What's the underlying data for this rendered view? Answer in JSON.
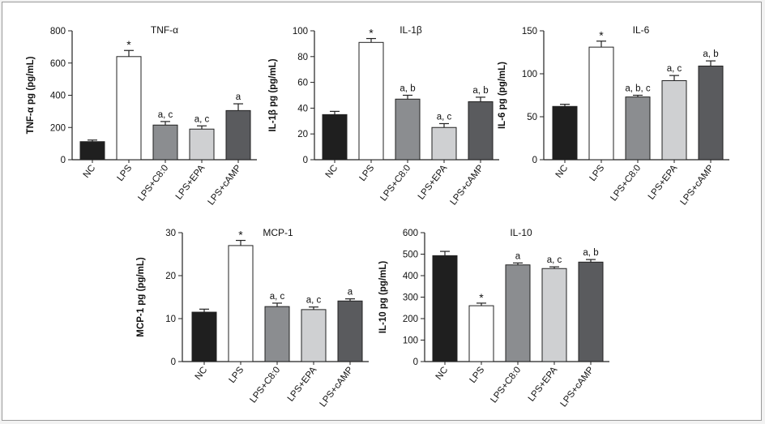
{
  "categories": [
    "NC",
    "LPS",
    "LPS+C8:0",
    "LPS+EPA",
    "LPS+cAMP"
  ],
  "colors": [
    "#1f1f1f",
    "#ffffff",
    "#8b8d90",
    "#cfd0d2",
    "#5a5b5e"
  ],
  "chart_data": [
    {
      "type": "bar",
      "title": "TNF-α",
      "ylabel": "TNF-α pg (pg/mL)",
      "ylim": [
        0,
        800
      ],
      "yticks": [
        0,
        200,
        400,
        600,
        800
      ],
      "categories": [
        "NC",
        "LPS",
        "LPS+C8:0",
        "LPS+EPA",
        "LPS+cAMP"
      ],
      "values": [
        112,
        640,
        215,
        190,
        305
      ],
      "errors": [
        10,
        38,
        22,
        20,
        42
      ],
      "annotations": [
        "",
        "*",
        "a, c",
        "a, c",
        "a"
      ]
    },
    {
      "type": "bar",
      "title": "IL-1β",
      "ylabel": "IL-1β pg (pg/mL)",
      "ylim": [
        0,
        100
      ],
      "yticks": [
        0,
        20,
        40,
        60,
        80,
        100
      ],
      "categories": [
        "NC",
        "LPS",
        "LPS+C8:0",
        "LPS+EPA",
        "LPS+cAMP"
      ],
      "values": [
        35,
        91,
        47,
        25,
        45
      ],
      "errors": [
        2.5,
        3,
        3,
        3,
        3.5
      ],
      "annotations": [
        "",
        "*",
        "a, b",
        "a, c",
        "a, b"
      ]
    },
    {
      "type": "bar",
      "title": "IL-6",
      "ylabel": "IL-6 pg (pg/mL)",
      "ylim": [
        0,
        150
      ],
      "yticks": [
        0,
        50,
        100,
        150
      ],
      "categories": [
        "NC",
        "LPS",
        "LPS+C8:0",
        "LPS+EPA",
        "LPS+cAMP"
      ],
      "values": [
        62,
        131,
        73,
        92,
        109
      ],
      "errors": [
        2.5,
        7,
        2,
        6,
        6
      ],
      "annotations": [
        "",
        "*",
        "a, b, c",
        "a, c",
        "a, b"
      ]
    },
    {
      "type": "bar",
      "title": "MCP-1",
      "ylabel": "MCP-1 pg (pg/mL)",
      "ylim": [
        0,
        30
      ],
      "yticks": [
        0,
        10,
        20,
        30
      ],
      "categories": [
        "NC",
        "LPS",
        "LPS+C8:0",
        "LPS+EPA",
        "LPS+cAMP"
      ],
      "values": [
        11.5,
        27,
        12.8,
        12.1,
        14.1
      ],
      "errors": [
        0.7,
        1.2,
        0.8,
        0.6,
        0.5
      ],
      "annotations": [
        "",
        "*",
        "a, c",
        "a, c",
        "a"
      ]
    },
    {
      "type": "bar",
      "title": "IL-10",
      "ylabel": "IL-10 pg (pg/mL)",
      "ylim": [
        0,
        600
      ],
      "yticks": [
        0,
        100,
        200,
        300,
        400,
        500,
        600
      ],
      "categories": [
        "NC",
        "LPS",
        "LPS+C8:0",
        "LPS+EPA",
        "LPS+cAMP"
      ],
      "values": [
        493,
        260,
        450,
        433,
        463
      ],
      "errors": [
        20,
        12,
        9,
        8,
        12
      ],
      "annotations": [
        "",
        "*",
        "a",
        "a, c",
        "a, b"
      ]
    }
  ]
}
